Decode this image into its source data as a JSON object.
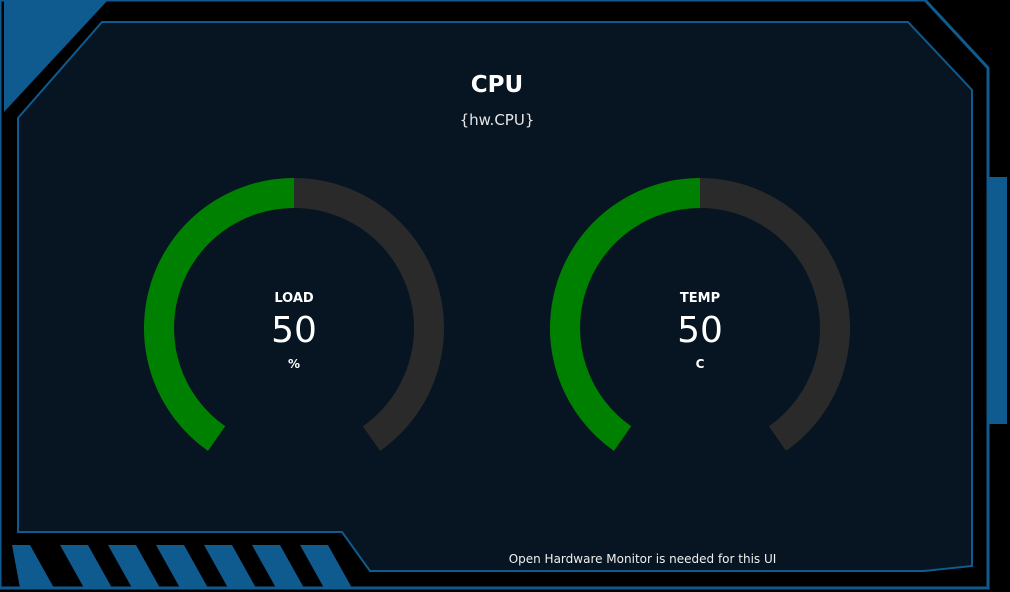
{
  "panel": {
    "title": "CPU",
    "subtitle": "{hw.CPU}"
  },
  "gauges": [
    {
      "label": "LOAD",
      "value": "50",
      "unit": "%",
      "fraction": 0.5
    },
    {
      "label": "TEMP",
      "value": "50",
      "unit": "C",
      "fraction": 0.5
    }
  ],
  "footer": {
    "note": "Open Hardware Monitor is needed for this UI"
  },
  "colors": {
    "background": "#000000",
    "panel": "#061521",
    "frame_accent": "#0f5a8e",
    "gauge_fill": "#008000",
    "gauge_track": "#2a2a2a",
    "text": "#ffffff"
  }
}
